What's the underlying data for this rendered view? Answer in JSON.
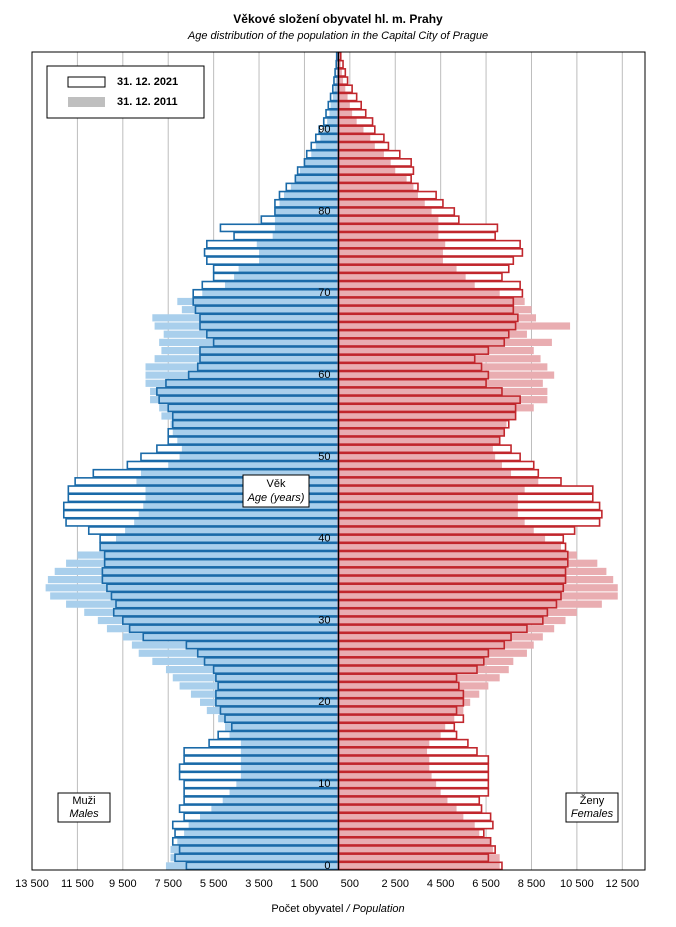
{
  "chart_data": {
    "type": "pyramid",
    "title": "Věkové složení obyvatel hl. m. Prahy",
    "subtitle": "Age distribution of the population  in the Capital City of Prague",
    "x_label": "Počet obyvatel ",
    "x_label_en": "/ Population",
    "center_label": "Věk",
    "center_label_en": "Age (years)",
    "left_label": "Muži",
    "left_label_en": "Males",
    "right_label": "Ženy",
    "right_label_en": "Females",
    "grid": true,
    "legend": "upper left",
    "xlim": [
      -13500,
      13500
    ],
    "xticks": [
      {
        "value": -13500,
        "label": "13 500"
      },
      {
        "value": -11500,
        "label": "11 500"
      },
      {
        "value": -9500,
        "label": "9 500"
      },
      {
        "value": -7500,
        "label": "7 500"
      },
      {
        "value": -5500,
        "label": "5 500"
      },
      {
        "value": -3500,
        "label": "3 500"
      },
      {
        "value": -1500,
        "label": "1 500"
      },
      500,
      {
        "value": 2500,
        "label": "2 500"
      },
      {
        "value": 4500,
        "label": "4 500"
      },
      {
        "value": 6500,
        "label": "6 500"
      },
      {
        "value": 8500,
        "label": "8 500"
      },
      {
        "value": 10500,
        "label": "10 500"
      },
      {
        "value": 12500,
        "label": "12 500"
      }
    ],
    "categories": [
      "0",
      null,
      null,
      null,
      null,
      null,
      null,
      null,
      null,
      null,
      "10",
      null,
      null,
      null,
      null,
      null,
      null,
      null,
      null,
      null,
      "20",
      null,
      null,
      null,
      null,
      null,
      null,
      null,
      null,
      null,
      "30",
      null,
      null,
      null,
      null,
      null,
      null,
      null,
      null,
      null,
      "40",
      null,
      null,
      null,
      null,
      null,
      null,
      null,
      null,
      null,
      "50",
      null,
      null,
      null,
      null,
      null,
      null,
      null,
      null,
      null,
      "60",
      null,
      null,
      null,
      null,
      null,
      null,
      null,
      null,
      null,
      "70",
      null,
      null,
      null,
      null,
      null,
      null,
      null,
      null,
      null,
      "80",
      null,
      null,
      null,
      null,
      null,
      null,
      null,
      null,
      null,
      "90",
      null,
      null,
      null,
      null,
      null,
      null,
      null,
      null,
      null
    ],
    "series": [
      {
        "name": "31. 12. 2011",
        "style": "fill",
        "male_color": "#a9cfec",
        "female_color": "#e9adb1",
        "legend_color": "#bfbfbf",
        "males": [
          -7600,
          -7400,
          -7400,
          -7100,
          -6800,
          -6600,
          -6100,
          -5600,
          -5100,
          -4800,
          -4500,
          -4300,
          -4300,
          -4300,
          -4300,
          -4300,
          -4800,
          -5000,
          -5300,
          -5800,
          -6100,
          -6500,
          -7000,
          -7300,
          -7600,
          -8200,
          -8800,
          -9100,
          -9500,
          -10200,
          -10600,
          -11200,
          -12000,
          -12700,
          -12900,
          -12800,
          -12500,
          -12000,
          -11500,
          -10500,
          -9800,
          -9400,
          -9000,
          -8800,
          -8600,
          -8500,
          -8500,
          -8900,
          -8700,
          -7500,
          -7000,
          -6900,
          -7100,
          -7300,
          -7400,
          -7800,
          -7900,
          -8300,
          -8300,
          -8500,
          -8500,
          -8500,
          -8100,
          -7800,
          -7900,
          -7700,
          -8100,
          -8200,
          -6900,
          -7100,
          -6000,
          -5000,
          -4600,
          -4400,
          -3500,
          -3500,
          -3600,
          -2900,
          -2800,
          -2800,
          -2800,
          -2600,
          -2400,
          -2100,
          -1900,
          -1700,
          -1500,
          -1200,
          -1000,
          -800,
          -650,
          -500,
          -400,
          -350,
          -250,
          -180,
          -120,
          -80,
          -50,
          -30
        ],
        "females": [
          7100,
          7100,
          6800,
          6700,
          6200,
          6000,
          5500,
          5200,
          4800,
          4500,
          4300,
          4100,
          4000,
          4000,
          3900,
          4000,
          4500,
          4700,
          5100,
          5500,
          5800,
          6200,
          6600,
          7100,
          7500,
          7700,
          8300,
          8600,
          9000,
          9500,
          10000,
          10500,
          11600,
          12300,
          12300,
          12100,
          11800,
          11400,
          10500,
          9800,
          9100,
          8600,
          8200,
          7900,
          7900,
          7900,
          8200,
          8800,
          7600,
          7200,
          6900,
          6800,
          7100,
          7300,
          7400,
          7800,
          8600,
          9200,
          9200,
          9000,
          9500,
          9200,
          8900,
          8600,
          9400,
          8300,
          10200,
          8700,
          8500,
          8200,
          7100,
          6000,
          5600,
          5200,
          4600,
          4600,
          4700,
          4400,
          4400,
          4400,
          4100,
          3800,
          3500,
          3300,
          3000,
          2500,
          2300,
          2000,
          1600,
          1400,
          1100,
          800,
          600,
          500,
          400,
          300,
          200,
          150,
          100,
          50
        ]
      },
      {
        "name": "31. 12. 2021",
        "style": "outline",
        "male_color": "#1a6aa8",
        "female_color": "#c1272d",
        "legend_color": "#ffffff",
        "males": [
          -6700,
          -7200,
          -7000,
          -7300,
          -7200,
          -7300,
          -6800,
          -7000,
          -6800,
          -6800,
          -6800,
          -7000,
          -7000,
          -6800,
          -6800,
          -5700,
          -5300,
          -4700,
          -5000,
          -5200,
          -5400,
          -5400,
          -5300,
          -5400,
          -5500,
          -5900,
          -6200,
          -6700,
          -8600,
          -9200,
          -9500,
          -9900,
          -9800,
          -10000,
          -10200,
          -10400,
          -10400,
          -10300,
          -10300,
          -10500,
          -10500,
          -11000,
          -12000,
          -12100,
          -12100,
          -11900,
          -11900,
          -11600,
          -10800,
          -9300,
          -8700,
          -8000,
          -7500,
          -7500,
          -7300,
          -7300,
          -7500,
          -7900,
          -8000,
          -7600,
          -6600,
          -6200,
          -6100,
          -6100,
          -5500,
          -5800,
          -6100,
          -6100,
          -6300,
          -6400,
          -6400,
          -6000,
          -5500,
          -5500,
          -5800,
          -5900,
          -5800,
          -4600,
          -5200,
          -3400,
          -2800,
          -2800,
          -2600,
          -2300,
          -1900,
          -1800,
          -1500,
          -1400,
          -1200,
          -1000,
          -850,
          -650,
          -550,
          -450,
          -350,
          -250,
          -200,
          -150,
          -100,
          -80
        ],
        "females": [
          7200,
          6600,
          6900,
          6700,
          6400,
          6800,
          6700,
          6300,
          6200,
          6600,
          6600,
          6600,
          6600,
          6600,
          6100,
          5700,
          5200,
          5100,
          5500,
          5200,
          5500,
          5500,
          5300,
          5200,
          6100,
          6400,
          6600,
          7300,
          7600,
          8300,
          9000,
          9200,
          9600,
          9800,
          9900,
          10000,
          10000,
          10100,
          10100,
          10000,
          9900,
          10400,
          11500,
          11600,
          11500,
          11200,
          11200,
          9800,
          8800,
          8600,
          8000,
          7600,
          7100,
          7300,
          7500,
          7800,
          7800,
          8000,
          7200,
          6500,
          6600,
          6300,
          6000,
          6600,
          7300,
          7500,
          7800,
          7900,
          7700,
          7700,
          8100,
          8000,
          7200,
          7500,
          7700,
          8100,
          8000,
          6900,
          7000,
          5300,
          5100,
          4600,
          4300,
          3500,
          3200,
          3300,
          3200,
          2700,
          2200,
          2000,
          1600,
          1500,
          1200,
          1000,
          800,
          600,
          400,
          300,
          200,
          100
        ]
      }
    ]
  }
}
